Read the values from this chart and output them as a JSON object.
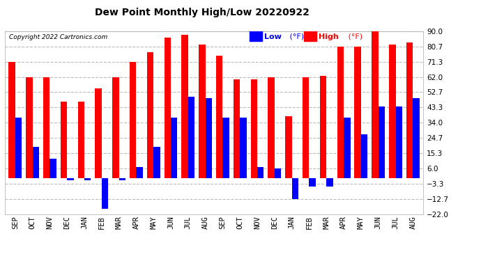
{
  "title": "Dew Point Monthly High/Low 20220922",
  "copyright": "Copyright 2022 Cartronics.com",
  "months": [
    "SEP",
    "OCT",
    "NOV",
    "DEC",
    "JAN",
    "FEB",
    "MAR",
    "APR",
    "MAY",
    "JUN",
    "JUL",
    "AUG",
    "SEP",
    "OCT",
    "NOV",
    "DEC",
    "JAN",
    "FEB",
    "MAR",
    "APR",
    "MAY",
    "JUN",
    "JUL",
    "AUG"
  ],
  "high": [
    71.3,
    62.0,
    62.0,
    47.0,
    47.0,
    55.0,
    62.0,
    71.3,
    77.0,
    86.0,
    88.0,
    82.0,
    75.0,
    60.5,
    60.5,
    62.0,
    38.0,
    62.0,
    62.5,
    80.7,
    80.7,
    91.0,
    82.0,
    83.0
  ],
  "low": [
    37.0,
    19.0,
    12.0,
    -1.5,
    -1.5,
    -19.0,
    -1.5,
    7.0,
    19.0,
    37.0,
    50.0,
    49.0,
    37.0,
    37.0,
    7.0,
    6.0,
    -13.0,
    -5.0,
    -5.0,
    37.0,
    27.0,
    44.0,
    44.0,
    49.0
  ],
  "yticks": [
    -22.0,
    -12.7,
    -3.3,
    6.0,
    15.3,
    24.7,
    34.0,
    43.3,
    52.7,
    62.0,
    71.3,
    80.7,
    90.0
  ],
  "ymin": -22.0,
  "ymax": 90.0,
  "bar_width": 0.38,
  "high_color": "#ff0000",
  "low_color": "#0000ff",
  "bg_color": "#ffffff",
  "grid_color": "#bbbbbb",
  "title_color": "#000000",
  "copyright_color": "#000000",
  "legend_low_color": "#0000ff",
  "legend_high_color": "#ff0000"
}
